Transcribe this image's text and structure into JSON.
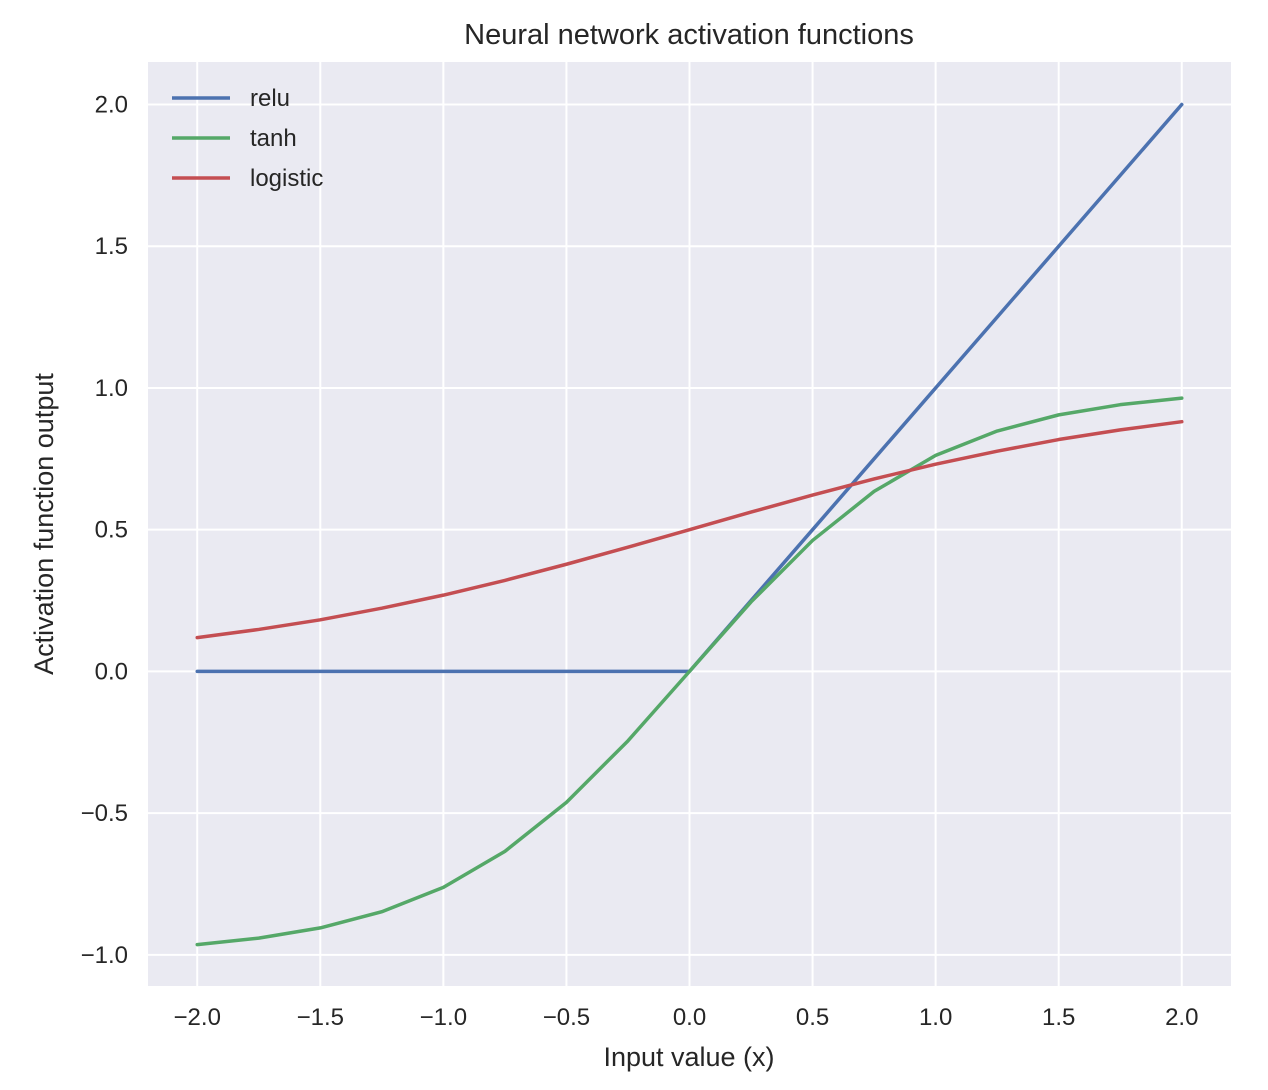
{
  "chart_data": {
    "type": "line",
    "title": "Neural network activation functions",
    "xlabel": "Input value (x)",
    "ylabel": "Activation function output",
    "xlim": [
      -2.2,
      2.2
    ],
    "ylim": [
      -1.11,
      2.15
    ],
    "xticks": [
      -2.0,
      -1.5,
      -1.0,
      -0.5,
      0.0,
      0.5,
      1.0,
      1.5,
      2.0
    ],
    "xtick_labels": [
      "−2.0",
      "−1.5",
      "−1.0",
      "−0.5",
      "0.0",
      "0.5",
      "1.0",
      "1.5",
      "2.0"
    ],
    "yticks": [
      -1.0,
      -0.5,
      0.0,
      0.5,
      1.0,
      1.5,
      2.0
    ],
    "ytick_labels": [
      "−1.0",
      "−0.5",
      "0.0",
      "0.5",
      "1.0",
      "1.5",
      "2.0"
    ],
    "grid": true,
    "legend_position": "top-left",
    "background": "#EAEAF2",
    "x": [
      -2.0,
      -1.75,
      -1.5,
      -1.25,
      -1.0,
      -0.75,
      -0.5,
      -0.25,
      0.0,
      0.25,
      0.5,
      0.75,
      1.0,
      1.25,
      1.5,
      1.75,
      2.0
    ],
    "series": [
      {
        "name": "relu",
        "color": "#4C72B0",
        "values": [
          0.0,
          0.0,
          0.0,
          0.0,
          0.0,
          0.0,
          0.0,
          0.0,
          0.0,
          0.25,
          0.5,
          0.75,
          1.0,
          1.25,
          1.5,
          1.75,
          2.0
        ]
      },
      {
        "name": "tanh",
        "color": "#55A868",
        "values": [
          -0.964,
          -0.941,
          -0.905,
          -0.848,
          -0.762,
          -0.635,
          -0.462,
          -0.245,
          0.0,
          0.245,
          0.462,
          0.635,
          0.762,
          0.848,
          0.905,
          0.941,
          0.964
        ]
      },
      {
        "name": "logistic",
        "color": "#C44E52",
        "values": [
          0.119,
          0.148,
          0.182,
          0.223,
          0.269,
          0.321,
          0.378,
          0.438,
          0.5,
          0.562,
          0.622,
          0.679,
          0.731,
          0.777,
          0.818,
          0.852,
          0.881
        ]
      }
    ]
  }
}
